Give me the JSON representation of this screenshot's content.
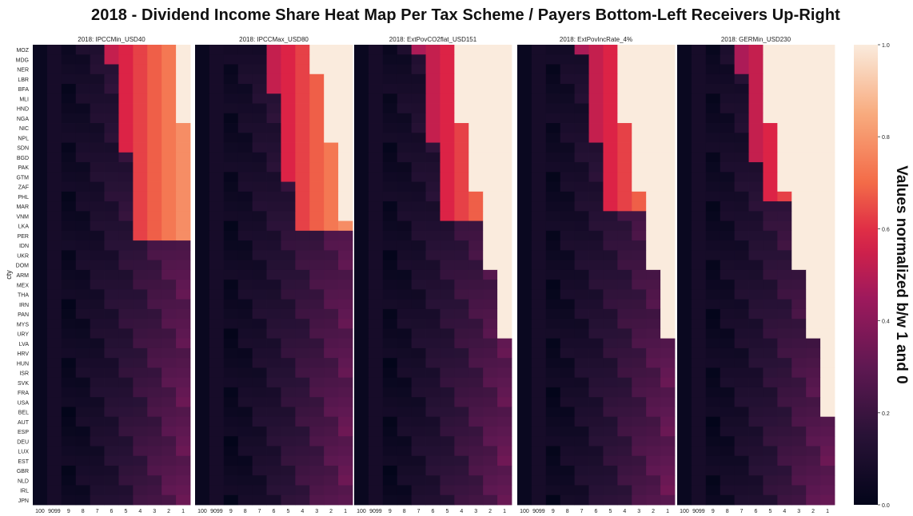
{
  "chart_data": {
    "type": "heatmap",
    "title": "2018 - Dividend Income Share Heat Map Per Tax Scheme /  Payers Bottom-Left Receivers Up-Right",
    "ylabel": "cty",
    "x_tick_labels": [
      "100",
      "9099",
      "9",
      "8",
      "7",
      "6",
      "5",
      "4",
      "3",
      "2",
      "1"
    ],
    "countries": [
      "MOZ",
      "MDG",
      "NER",
      "LBR",
      "BFA",
      "MLI",
      "HND",
      "NGA",
      "NIC",
      "NPL",
      "SDN",
      "BGD",
      "PAK",
      "GTM",
      "ZAF",
      "PHL",
      "MAR",
      "VNM",
      "LKA",
      "PER",
      "IDN",
      "UKR",
      "DOM",
      "ARM",
      "MEX",
      "THA",
      "IRN",
      "PAN",
      "MYS",
      "URY",
      "LVA",
      "HRV",
      "HUN",
      "ISR",
      "SVK",
      "FRA",
      "USA",
      "BEL",
      "AUT",
      "ESP",
      "DEU",
      "LUX",
      "EST",
      "GBR",
      "NLD",
      "IRL",
      "JPN"
    ],
    "panels": [
      {
        "name": "2018: IPCCMin_USD40",
        "saturation_shift": 0.0
      },
      {
        "name": "2018: IPCCMax_USD80",
        "saturation_shift": 1.3
      },
      {
        "name": "2018: ExtPovCO2flat_USD151",
        "saturation_shift": 3.0
      },
      {
        "name": "2018: ExtPovIncRate_4%",
        "saturation_shift": 3.0
      },
      {
        "name": "2018: GERMin_USD230",
        "saturation_shift": 4.0
      }
    ],
    "colorbar": {
      "label": "Values normalized b/w 1 and 0",
      "range": [
        0.0,
        1.0
      ],
      "ticks": [
        "0.0",
        "0.2",
        "0.4",
        "0.6",
        "0.8",
        "1.0"
      ],
      "colormap": "rocket"
    }
  }
}
